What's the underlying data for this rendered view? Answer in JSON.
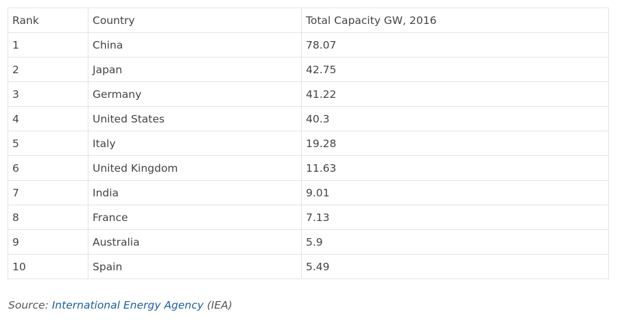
{
  "table": {
    "headers": [
      "Rank",
      "Country",
      "Total Capacity GW, 2016"
    ],
    "rows": [
      [
        "1",
        "China",
        "78.07"
      ],
      [
        "2",
        "Japan",
        "42.75"
      ],
      [
        "3",
        "Germany",
        "41.22"
      ],
      [
        "4",
        "United States",
        "40.3"
      ],
      [
        "5",
        "Italy",
        "19.28"
      ],
      [
        "6",
        "United Kingdom",
        "11.63"
      ],
      [
        "7",
        "India",
        "9.01"
      ],
      [
        "8",
        "France",
        "7.13"
      ],
      [
        "9",
        "Australia",
        "5.9"
      ],
      [
        "10",
        "Spain",
        "5.49"
      ]
    ]
  },
  "source": {
    "prefix": "Source: ",
    "link_text": "International Energy Agency",
    "suffix": " (IEA)",
    "link_color": "#1a5fa6"
  }
}
